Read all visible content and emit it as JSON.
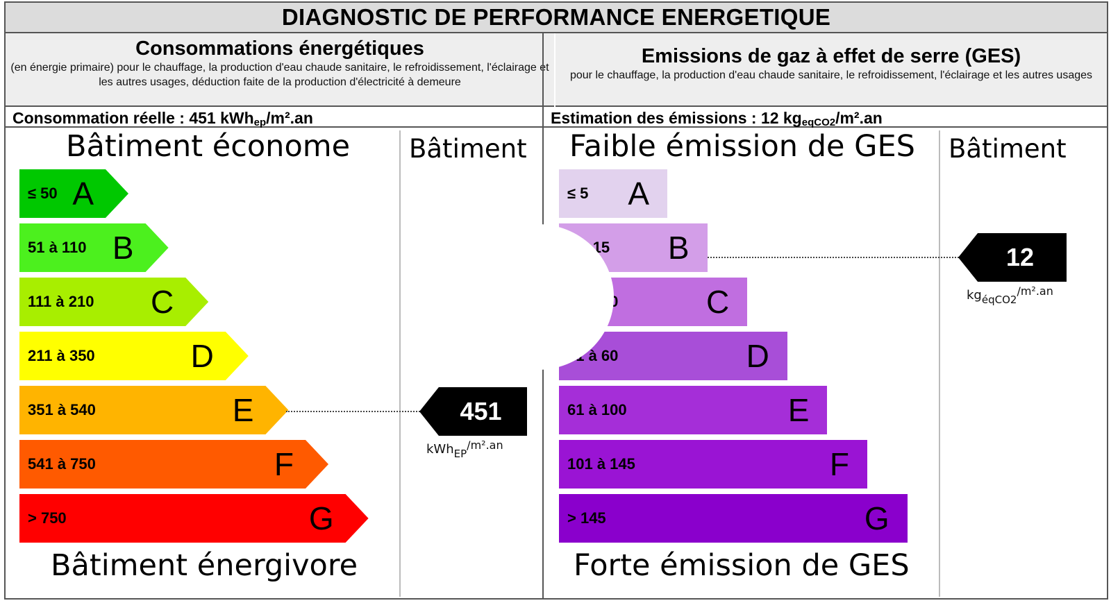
{
  "title": "DIAGNOSTIC DE PERFORMANCE ENERGETIQUE",
  "energy": {
    "heading": "Consommations énergétiques",
    "subheading": "(en énergie primaire) pour le chauffage, la production d'eau chaude sanitaire, le refroidissement, l'éclairage et les autres usages, déduction faite de la production d'électricité à demeure",
    "result_prefix": "Consommation réelle : 451 kWh",
    "result_sub": "ep",
    "result_suffix": "/m².an",
    "top_label": "Bâtiment économe",
    "bottom_label": "Bâtiment énergivore",
    "column_label": "Bâtiment",
    "value": "451",
    "unit_main": "kWh",
    "unit_sub": "EP",
    "unit_sup": "/m².an",
    "selected_class": "E",
    "classes": [
      {
        "range": "≤ 50",
        "letter": "A",
        "color": "#00c800"
      },
      {
        "range": "51 à 110",
        "letter": "B",
        "color": "#4cf01e"
      },
      {
        "range": "111 à 210",
        "letter": "C",
        "color": "#a8ee00"
      },
      {
        "range": "211 à 350",
        "letter": "D",
        "color": "#ffff00"
      },
      {
        "range": "351 à 540",
        "letter": "E",
        "color": "#ffb400"
      },
      {
        "range": "541 à 750",
        "letter": "F",
        "color": "#ff5a00"
      },
      {
        "range": "> 750",
        "letter": "G",
        "color": "#ff0000"
      }
    ]
  },
  "ges": {
    "heading": "Emissions de gaz à effet de serre (GES)",
    "subheading": "pour le chauffage, la production d'eau chaude sanitaire, le refroidissement, l'éclairage et les autres usages",
    "result_prefix": "Estimation des émissions : 12 kg",
    "result_sub": "eqCO2",
    "result_suffix": "/m².an",
    "top_label": "Faible émission de GES",
    "bottom_label": "Forte émission de GES",
    "column_label": "Bâtiment",
    "value": "12",
    "unit_main": "kg",
    "unit_sub": "éqCO2",
    "unit_sup": "/m².an",
    "selected_class": "B",
    "classes": [
      {
        "range": "≤ 5",
        "letter": "A",
        "color": "#e2d2ee"
      },
      {
        "range": "6 à 15",
        "letter": "B",
        "color": "#d39ee8"
      },
      {
        "range": "16 à 30",
        "letter": "C",
        "color": "#c06ee0"
      },
      {
        "range": "31 à 60",
        "letter": "D",
        "color": "#a84ed8"
      },
      {
        "range": "61 à 100",
        "letter": "E",
        "color": "#a52ed8"
      },
      {
        "range": "101 à 145",
        "letter": "F",
        "color": "#9a14d4"
      },
      {
        "range": "> 145",
        "letter": "G",
        "color": "#8a00cc"
      }
    ]
  }
}
